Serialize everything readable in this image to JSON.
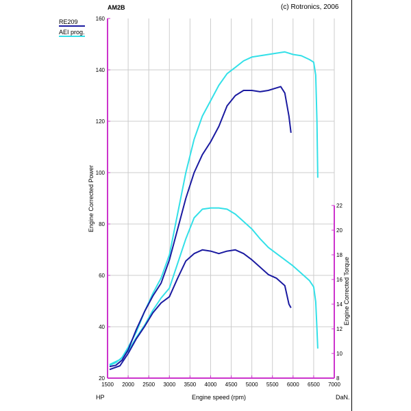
{
  "header": {
    "model": "AM2B",
    "copyright": "(c) Rotronics, 2006"
  },
  "units": {
    "left": "HP",
    "right": "DaN."
  },
  "colors": {
    "series1": "#1a1aa0",
    "series2": "#33e0e8",
    "axis": "#cc33cc",
    "grid": "#cccccc"
  },
  "chart_data": {
    "type": "line",
    "xlabel": "Engine speed (rpm)",
    "ylabel": "Engine Corrected Power",
    "y2label": "Engine Corrected Torque",
    "xlim": [
      1500,
      7000
    ],
    "ylim": [
      20,
      160
    ],
    "y2lim": [
      8,
      22
    ],
    "grid": true,
    "legend": "top-left",
    "xticks": [
      "1500",
      "2000",
      "2500",
      "3000",
      "3500",
      "4000",
      "4500",
      "5000",
      "5500",
      "6000",
      "6500",
      "7000"
    ],
    "yticks": [
      "20",
      "40",
      "60",
      "80",
      "100",
      "120",
      "140",
      "160"
    ],
    "y2ticks": [
      "8",
      "10",
      "12",
      "14",
      "16",
      "18",
      "20",
      "22"
    ],
    "series": [
      {
        "name": "RE209",
        "color": "#1a1aa0",
        "power": [
          [
            1550,
            24.5
          ],
          [
            1700,
            25
          ],
          [
            1850,
            27
          ],
          [
            2000,
            31
          ],
          [
            2200,
            39
          ],
          [
            2400,
            46
          ],
          [
            2600,
            52
          ],
          [
            2800,
            57
          ],
          [
            3000,
            66
          ],
          [
            3200,
            78
          ],
          [
            3400,
            90
          ],
          [
            3600,
            100
          ],
          [
            3800,
            107
          ],
          [
            4000,
            112
          ],
          [
            4200,
            118
          ],
          [
            4400,
            126
          ],
          [
            4600,
            130
          ],
          [
            4800,
            132
          ],
          [
            5000,
            132
          ],
          [
            5200,
            131.5
          ],
          [
            5400,
            132
          ],
          [
            5600,
            133
          ],
          [
            5700,
            133.5
          ],
          [
            5800,
            131
          ],
          [
            5900,
            122
          ],
          [
            5950,
            115.5
          ]
        ],
        "torque": [
          [
            1550,
            8.7
          ],
          [
            1800,
            9.0
          ],
          [
            2000,
            10.0
          ],
          [
            2200,
            11.2
          ],
          [
            2400,
            12.2
          ],
          [
            2600,
            13.3
          ],
          [
            2800,
            14.1
          ],
          [
            3000,
            14.6
          ],
          [
            3200,
            16.1
          ],
          [
            3400,
            17.5
          ],
          [
            3600,
            18.1
          ],
          [
            3800,
            18.4
          ],
          [
            4000,
            18.3
          ],
          [
            4200,
            18.1
          ],
          [
            4400,
            18.3
          ],
          [
            4600,
            18.4
          ],
          [
            4800,
            18.1
          ],
          [
            5000,
            17.6
          ],
          [
            5200,
            17.0
          ],
          [
            5400,
            16.4
          ],
          [
            5600,
            16.1
          ],
          [
            5800,
            15.5
          ],
          [
            5900,
            14.0
          ],
          [
            5950,
            13.7
          ]
        ]
      },
      {
        "name": "AEI prog.",
        "color": "#33e0e8",
        "power": [
          [
            1550,
            25
          ],
          [
            1700,
            26
          ],
          [
            1850,
            28
          ],
          [
            2000,
            32
          ],
          [
            2200,
            38
          ],
          [
            2400,
            46
          ],
          [
            2600,
            53
          ],
          [
            2800,
            59
          ],
          [
            3000,
            68
          ],
          [
            3200,
            84
          ],
          [
            3400,
            100
          ],
          [
            3600,
            113
          ],
          [
            3800,
            122
          ],
          [
            4000,
            128
          ],
          [
            4200,
            134
          ],
          [
            4400,
            138.5
          ],
          [
            4600,
            141
          ],
          [
            4800,
            143.5
          ],
          [
            5000,
            145
          ],
          [
            5200,
            145.5
          ],
          [
            5400,
            146
          ],
          [
            5600,
            146.5
          ],
          [
            5800,
            147
          ],
          [
            6000,
            146
          ],
          [
            6200,
            145.5
          ],
          [
            6400,
            144
          ],
          [
            6500,
            143
          ],
          [
            6550,
            138
          ],
          [
            6580,
            120
          ],
          [
            6600,
            98
          ]
        ],
        "torque": [
          [
            1550,
            9.1
          ],
          [
            1800,
            9.5
          ],
          [
            2000,
            10.2
          ],
          [
            2200,
            11.3
          ],
          [
            2400,
            12.3
          ],
          [
            2600,
            13.5
          ],
          [
            2800,
            14.5
          ],
          [
            3000,
            15.3
          ],
          [
            3200,
            17.3
          ],
          [
            3400,
            19.3
          ],
          [
            3600,
            21.0
          ],
          [
            3800,
            21.7
          ],
          [
            4000,
            21.8
          ],
          [
            4200,
            21.8
          ],
          [
            4400,
            21.7
          ],
          [
            4600,
            21.3
          ],
          [
            4800,
            20.7
          ],
          [
            5000,
            20.1
          ],
          [
            5200,
            19.3
          ],
          [
            5400,
            18.6
          ],
          [
            5600,
            18.1
          ],
          [
            5800,
            17.6
          ],
          [
            6000,
            17.1
          ],
          [
            6200,
            16.5
          ],
          [
            6400,
            15.9
          ],
          [
            6500,
            15.4
          ],
          [
            6550,
            14.2
          ],
          [
            6580,
            12.0
          ],
          [
            6600,
            10.4
          ]
        ]
      }
    ]
  }
}
